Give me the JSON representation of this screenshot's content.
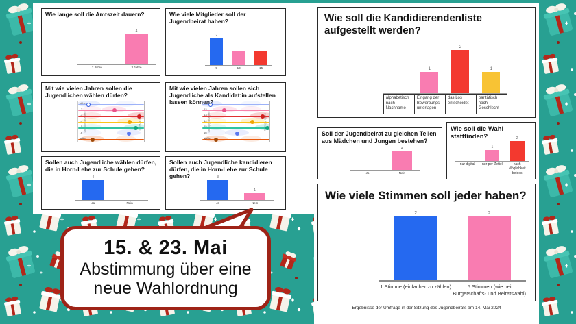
{
  "page": {
    "footer": "Ergebnisse der Umfrage in der Sitzung des Jugendbeirats am 14. Mai 2024",
    "bubble": {
      "line1": "15. & 23. Mai",
      "line2": "Abstimmung über eine",
      "line3": "neue Wahlordnung"
    }
  },
  "colors": {
    "background_teal": "#28a092",
    "accent_dark_red": "#9e2317",
    "bar_blue": "#2569f0",
    "bar_pink": "#f97cb1",
    "bar_red": "#f3392f",
    "bar_yellow": "#f8c334"
  },
  "chart_data": [
    {
      "id": "amtszeit",
      "type": "bar",
      "title": "Wie lange soll die Amtszeit dauern?",
      "categories": [
        "2 Jahre",
        "3 Jahre"
      ],
      "values": [
        0,
        4
      ],
      "bar_colors": [
        "#f97cb1",
        "#f97cb1"
      ],
      "ylim": [
        0,
        4
      ]
    },
    {
      "id": "mitglieder",
      "type": "bar",
      "title": "Wie viele Mitglieder soll der Jugendbeirat haben?",
      "categories": [
        "9",
        "13",
        "15"
      ],
      "values": [
        2,
        1,
        1
      ],
      "bar_colors": [
        "#2569f0",
        "#f97cb1",
        "#f3392f"
      ],
      "ylim": [
        0,
        2
      ]
    },
    {
      "id": "waehlen_alter",
      "type": "scales",
      "title": "Mit wie vielen Jahren sollen die Jugendlichen wählen dürfen?",
      "axis_left": "Strongly disagree",
      "axis_right": "Strongly agree",
      "rows": [
        {
          "label": "früher",
          "dot": 0.16,
          "line": "#9db2f8",
          "dot_color": "#2f5ae0",
          "hollow": true
        },
        {
          "label": "12",
          "dot": 0.55,
          "line": "#f783ac",
          "dot_color": "#e8538a"
        },
        {
          "label": "13",
          "dot": 0.93,
          "line": "#e03131",
          "dot_color": "#d01f1f"
        },
        {
          "label": "14",
          "dot": 0.78,
          "line": "#fcc419",
          "dot_color": "#f0a500"
        },
        {
          "label": "15",
          "dot": 0.88,
          "line": "#2ec5a2",
          "dot_color": "#0ba57e"
        },
        {
          "label": "16",
          "dot": 0.77,
          "line": "#97a9f7",
          "dot_color": "#5a78f0"
        },
        {
          "label": "später",
          "dot": 0.22,
          "line": "#e8590c",
          "dot_color": "#a04a08"
        }
      ]
    },
    {
      "id": "kandidieren_alter",
      "type": "scales",
      "title": "Mit wie vielen Jahren sollen sich Jugendliche als Kandidat:in aufstellen lassen können?",
      "axis_left": "Strongly disagree",
      "axis_right": "Strongly agree",
      "rows": [
        {
          "label": "früher",
          "dot": 0.12,
          "line": "#9db2f8",
          "dot_color": "#2f5ae0",
          "hollow": true
        },
        {
          "label": "12",
          "dot": 0.33,
          "line": "#f783ac",
          "dot_color": "#e8538a"
        },
        {
          "label": "13",
          "dot": 0.9,
          "line": "#e03131",
          "dot_color": "#d01f1f"
        },
        {
          "label": "14",
          "dot": 0.75,
          "line": "#fcc419",
          "dot_color": "#f0a500"
        },
        {
          "label": "15",
          "dot": 0.97,
          "line": "#2ec5a2",
          "dot_color": "#0ba57e"
        },
        {
          "label": "16",
          "dot": 0.52,
          "line": "#97a9f7",
          "dot_color": "#5a78f0"
        },
        {
          "label": "später",
          "dot": 0.2,
          "line": "#e8590c",
          "dot_color": "#a04a08"
        }
      ]
    },
    {
      "id": "horn_lehe_waehlen",
      "type": "bar",
      "title": "Sollen auch Jugendliche wählen dürfen, die in Horn-Lehe zur Schule gehen?",
      "categories": [
        "Ja",
        "Nein"
      ],
      "values": [
        4,
        0
      ],
      "bar_colors": [
        "#2569f0",
        "#2569f0"
      ],
      "ylim": [
        0,
        4
      ]
    },
    {
      "id": "horn_lehe_kandidieren",
      "type": "bar",
      "title": "Sollen auch Jugendliche kandidieren dürfen, die in Horn-Lehe zur Schule gehen?",
      "categories": [
        "Ja",
        "Nein"
      ],
      "values": [
        3,
        1
      ],
      "bar_colors": [
        "#2569f0",
        "#f97cb1"
      ],
      "ylim": [
        0,
        3
      ]
    },
    {
      "id": "kandidierendenliste",
      "type": "bar",
      "title": "Wie soll die Kandidierendenliste aufgestellt werden?",
      "categories": [
        "alphabetisch nach Nachname",
        "Eingang der Bewerbungs-unterlagen",
        "das Los entscheidet",
        "paritätisch nach Geschlecht"
      ],
      "values": [
        0,
        1,
        2,
        1
      ],
      "bar_colors": [
        "#f97cb1",
        "#f97cb1",
        "#f3392f",
        "#f8c334"
      ],
      "boxed_labels": true,
      "ylim": [
        0,
        2
      ]
    },
    {
      "id": "paritaet",
      "type": "bar",
      "title": "Soll der Jugendbeirat zu gleichen Teilen aus Mädchen und Jungen bestehen?",
      "categories": [
        "Ja",
        "Nein"
      ],
      "values": [
        0,
        4
      ],
      "bar_colors": [
        "#f97cb1",
        "#f97cb1"
      ],
      "ylim": [
        0,
        4
      ]
    },
    {
      "id": "wahlform",
      "type": "bar",
      "title": "Wie soll die Wahl stattfinden?",
      "categories": [
        "nur digital",
        "nur per Zettel",
        "nach Möglichkeit beides"
      ],
      "values": [
        0,
        1,
        2
      ],
      "bar_colors": [
        "#f97cb1",
        "#f97cb1",
        "#f3392f"
      ],
      "ylim": [
        0,
        2
      ]
    },
    {
      "id": "stimmen",
      "type": "bar",
      "title": "Wie viele Stimmen soll jeder haben?",
      "categories": [
        "1 Stimme (einfacher zu zählen)",
        "5 Stimmen (wie bei Bürgerschafts- und Beiratswahl)"
      ],
      "values": [
        2,
        2
      ],
      "bar_colors": [
        "#2569f0",
        "#f97cb1"
      ],
      "ylim": [
        0,
        2
      ]
    }
  ]
}
